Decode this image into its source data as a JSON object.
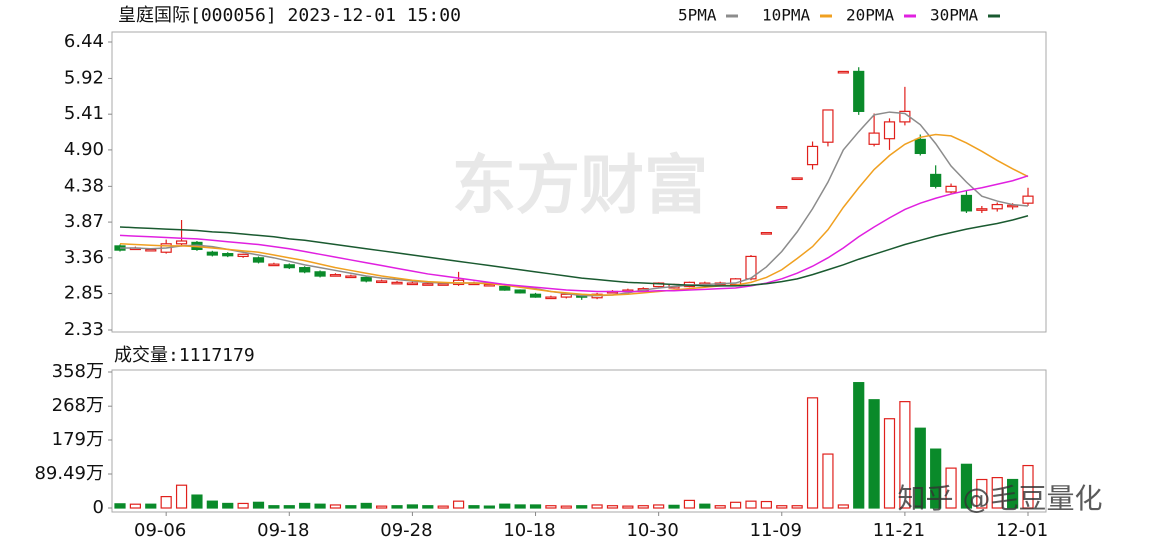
{
  "chart_data": [
    {
      "type": "candlestick",
      "title": "皇庭国际[000056] 2023-12-01 15:00",
      "up_color": "#e0201c",
      "down_color": "#0a8a2a",
      "ylim": [
        2.33,
        6.44
      ],
      "yticks": [
        6.44,
        5.92,
        5.41,
        {
          "value": 4.9,
          "label": "4.90"
        },
        4.38,
        3.87,
        3.36,
        2.85,
        2.33
      ],
      "open": [
        3.53,
        3.5,
        3.48,
        3.44,
        3.56,
        3.58,
        3.44,
        3.42,
        3.38,
        3.36,
        3.27,
        3.26,
        3.22,
        3.16,
        3.12,
        3.1,
        3.08,
        3.03,
        3.01,
        3.0,
        2.99,
        2.99,
        2.98,
        3.0,
        2.98,
        2.95,
        2.9,
        2.84,
        2.8,
        2.8,
        2.82,
        2.79,
        2.88,
        2.9,
        2.92,
        2.95,
        2.93,
        2.95,
        3.0,
        3.0,
        2.98,
        3.06,
        3.72,
        4.09,
        4.5,
        4.69,
        5.01,
        6.02,
        6.02,
        4.98,
        5.06,
        5.3,
        5.05,
        4.55,
        4.3,
        4.25,
        4.05,
        4.06,
        4.1,
        4.14
      ],
      "high": [
        3.55,
        3.52,
        3.5,
        3.62,
        3.9,
        3.6,
        3.46,
        3.44,
        3.42,
        3.38,
        3.29,
        3.28,
        3.24,
        3.18,
        3.14,
        3.12,
        3.1,
        3.05,
        3.03,
        3.02,
        3.01,
        3.01,
        3.16,
        3.02,
        3.0,
        2.96,
        2.91,
        2.86,
        2.82,
        2.86,
        2.83,
        2.86,
        2.9,
        2.92,
        2.94,
        3.01,
        2.99,
        3.02,
        3.02,
        3.02,
        3.07,
        3.4,
        3.72,
        4.09,
        4.5,
        5.02,
        5.47,
        6.02,
        6.08,
        5.42,
        5.35,
        5.8,
        5.12,
        4.68,
        4.42,
        4.32,
        4.1,
        4.15,
        4.14,
        4.36
      ],
      "low": [
        3.45,
        3.48,
        3.46,
        3.42,
        3.52,
        3.46,
        3.38,
        3.37,
        3.36,
        3.28,
        3.25,
        3.2,
        3.14,
        3.08,
        3.1,
        3.08,
        3.01,
        3.01,
        2.99,
        2.98,
        2.97,
        2.97,
        2.96,
        2.98,
        2.96,
        2.89,
        2.85,
        2.79,
        2.78,
        2.78,
        2.76,
        2.77,
        2.86,
        2.88,
        2.9,
        2.94,
        2.92,
        2.94,
        2.98,
        2.98,
        2.96,
        3.04,
        3.72,
        4.09,
        4.5,
        4.62,
        4.95,
        6.02,
        5.4,
        4.95,
        4.9,
        5.25,
        4.82,
        4.35,
        4.28,
        4.0,
        4.0,
        4.02,
        4.05,
        4.1
      ],
      "close": [
        3.47,
        3.5,
        3.48,
        3.56,
        3.6,
        3.48,
        3.4,
        3.39,
        3.41,
        3.3,
        3.27,
        3.22,
        3.16,
        3.1,
        3.12,
        3.1,
        3.03,
        3.03,
        3.01,
        3.0,
        2.99,
        2.99,
        3.04,
        3.0,
        2.98,
        2.9,
        2.86,
        2.8,
        2.8,
        2.84,
        2.8,
        2.84,
        2.88,
        2.9,
        2.92,
        3.0,
        2.98,
        3.01,
        3.0,
        3.0,
        3.06,
        3.38,
        3.72,
        4.09,
        4.5,
        4.95,
        5.47,
        6.02,
        5.45,
        5.14,
        5.3,
        5.45,
        4.85,
        4.38,
        4.38,
        4.03,
        4.06,
        4.12,
        4.11,
        4.24
      ],
      "series": [
        {
          "name": "5PMA",
          "color": "#8c8c8c",
          "values": [
            3.5,
            3.5,
            3.49,
            3.5,
            3.53,
            3.54,
            3.52,
            3.48,
            3.44,
            3.4,
            3.36,
            3.31,
            3.26,
            3.22,
            3.18,
            3.14,
            3.1,
            3.07,
            3.05,
            3.03,
            3.01,
            3.0,
            3.0,
            3.0,
            3.0,
            2.98,
            2.95,
            2.92,
            2.88,
            2.85,
            2.82,
            2.82,
            2.83,
            2.86,
            2.9,
            2.93,
            2.95,
            2.97,
            2.98,
            2.99,
            3.0,
            3.07,
            3.23,
            3.45,
            3.73,
            4.06,
            4.44,
            4.9,
            5.16,
            5.4,
            5.44,
            5.42,
            5.26,
            4.99,
            4.67,
            4.44,
            4.24,
            4.17,
            4.12,
            4.1
          ]
        },
        {
          "name": "10PMA",
          "color": "#f0a020",
          "values": [
            3.56,
            3.55,
            3.54,
            3.53,
            3.53,
            3.52,
            3.5,
            3.48,
            3.46,
            3.44,
            3.4,
            3.36,
            3.32,
            3.27,
            3.22,
            3.18,
            3.14,
            3.1,
            3.07,
            3.04,
            3.02,
            3.01,
            3.0,
            3.0,
            2.99,
            2.97,
            2.94,
            2.91,
            2.88,
            2.86,
            2.84,
            2.83,
            2.83,
            2.84,
            2.86,
            2.88,
            2.9,
            2.92,
            2.94,
            2.96,
            2.97,
            3.01,
            3.08,
            3.19,
            3.35,
            3.52,
            3.76,
            4.08,
            4.36,
            4.62,
            4.82,
            4.98,
            5.08,
            5.12,
            5.1,
            5.0,
            4.88,
            4.75,
            4.63,
            4.52
          ]
        },
        {
          "name": "20PMA",
          "color": "#e020e0",
          "values": [
            3.68,
            3.67,
            3.66,
            3.65,
            3.64,
            3.63,
            3.61,
            3.59,
            3.57,
            3.55,
            3.52,
            3.49,
            3.45,
            3.41,
            3.37,
            3.33,
            3.29,
            3.25,
            3.21,
            3.17,
            3.13,
            3.1,
            3.07,
            3.04,
            3.01,
            2.98,
            2.96,
            2.94,
            2.92,
            2.9,
            2.89,
            2.88,
            2.88,
            2.88,
            2.88,
            2.89,
            2.89,
            2.9,
            2.91,
            2.92,
            2.93,
            2.96,
            3.0,
            3.06,
            3.14,
            3.24,
            3.36,
            3.5,
            3.66,
            3.8,
            3.93,
            4.05,
            4.14,
            4.21,
            4.27,
            4.32,
            4.36,
            4.41,
            4.46,
            4.53
          ]
        },
        {
          "name": "30PMA",
          "color": "#1a5a30",
          "values": [
            3.8,
            3.79,
            3.78,
            3.77,
            3.76,
            3.75,
            3.73,
            3.72,
            3.7,
            3.68,
            3.66,
            3.63,
            3.61,
            3.58,
            3.55,
            3.52,
            3.49,
            3.46,
            3.43,
            3.4,
            3.37,
            3.34,
            3.31,
            3.28,
            3.25,
            3.22,
            3.19,
            3.16,
            3.13,
            3.1,
            3.07,
            3.05,
            3.03,
            3.01,
            3.0,
            2.99,
            2.98,
            2.97,
            2.96,
            2.96,
            2.96,
            2.97,
            2.99,
            3.02,
            3.06,
            3.12,
            3.19,
            3.26,
            3.34,
            3.41,
            3.48,
            3.55,
            3.61,
            3.67,
            3.72,
            3.77,
            3.81,
            3.85,
            3.9,
            3.96
          ]
        }
      ],
      "watermark": "东方财富"
    },
    {
      "type": "bar",
      "title": "成交量:1117179",
      "categories": [
        null,
        null,
        null,
        "09-06",
        null,
        null,
        null,
        null,
        null,
        null,
        null,
        "09-18",
        null,
        null,
        null,
        null,
        null,
        null,
        null,
        "09-28",
        null,
        null,
        null,
        null,
        null,
        null,
        null,
        "10-18",
        null,
        null,
        null,
        null,
        null,
        null,
        null,
        "10-30",
        null,
        null,
        null,
        null,
        null,
        null,
        null,
        "11-09",
        null,
        null,
        null,
        null,
        null,
        null,
        null,
        "11-21",
        null,
        null,
        null,
        null,
        null,
        null,
        null,
        "12-01"
      ],
      "values": [
        11,
        10,
        10,
        30,
        60,
        34,
        18,
        12,
        12,
        15,
        6,
        6,
        12,
        10,
        8,
        6,
        12,
        5,
        6,
        8,
        6,
        5,
        18,
        6,
        5,
        10,
        8,
        8,
        6,
        5,
        6,
        8,
        6,
        5,
        6,
        8,
        7,
        20,
        10,
        6,
        15,
        18,
        17,
        6,
        6,
        290,
        142,
        8,
        330,
        285,
        235,
        280,
        210,
        155,
        105,
        115,
        75,
        80,
        75,
        111.72
      ],
      "ylim": [
        0,
        358
      ],
      "yticks": [
        {
          "value": 358,
          "label": "358万"
        },
        {
          "value": 268,
          "label": "268万"
        },
        {
          "value": 179,
          "label": "179万"
        },
        {
          "value": 89.49,
          "label": "89.49万"
        },
        0
      ],
      "watermark": "知乎 @毛豆量化"
    }
  ]
}
